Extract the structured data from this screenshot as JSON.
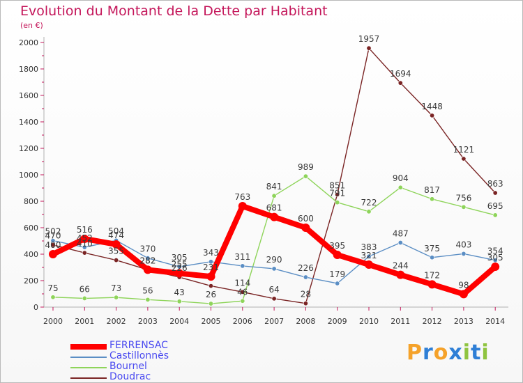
{
  "title": "Evolution du Montant de la Dette par Habitant",
  "subtitle": "(en €)",
  "logo": {
    "text": "Proxiti",
    "letters": [
      {
        "ch": "P",
        "color": "#f5a22a"
      },
      {
        "ch": "r",
        "color": "#2f7fd6"
      },
      {
        "ch": "o",
        "color": "#f5a22a"
      },
      {
        "ch": "x",
        "color": "#2f7fd6"
      },
      {
        "ch": "i",
        "color": "#8fc440"
      },
      {
        "ch": "t",
        "color": "#2f7fd6"
      },
      {
        "ch": "i",
        "color": "#8fc440"
      }
    ]
  },
  "chart_data": {
    "type": "line",
    "title": "Evolution du Montant de la Dette par Habitant",
    "subtitle": "(en €)",
    "x": [
      "2000",
      "2001",
      "2002",
      "2003",
      "2004",
      "2005",
      "2006",
      "2007",
      "2008",
      "2009",
      "2010",
      "2011",
      "2012",
      "2013",
      "2014"
    ],
    "y_ticks": [
      "0",
      "200",
      "400",
      "600",
      "800",
      "1000",
      "1200",
      "1400",
      "1600",
      "1800",
      "2000"
    ],
    "ylim": [
      0,
      2000
    ],
    "grid": false,
    "legend_position": "bottom-left",
    "series": [
      {
        "name": "FERRENSAC",
        "color": "#ff0000",
        "values": [
          400,
          516,
          474,
          282,
          255,
          231,
          763,
          681,
          600,
          395,
          321,
          244,
          172,
          98,
          305
        ],
        "labels": [
          "400",
          "516",
          "474",
          "282",
          "255",
          "231",
          "763",
          "681",
          "600",
          "395",
          "321",
          "244",
          "172",
          "98",
          "305"
        ]
      },
      {
        "name": "Castillonnès",
        "color": "#5b8ec4",
        "values": [
          502,
          452,
          504,
          370,
          305,
          343,
          311,
          290,
          226,
          179,
          383,
          487,
          375,
          403,
          354
        ],
        "labels": [
          "502",
          "452",
          "504",
          "370",
          "305",
          "343",
          "311",
          "290",
          "226",
          "179",
          "383",
          "487",
          "375",
          "403",
          "354"
        ]
      },
      {
        "name": "Bournel",
        "color": "#8ed45a",
        "values": [
          75,
          66,
          73,
          56,
          43,
          26,
          46,
          841,
          989,
          791,
          722,
          904,
          817,
          756,
          695
        ],
        "labels": [
          "75",
          "66",
          "73",
          "56",
          "43",
          "26",
          "46",
          "841",
          "989",
          "791",
          "722",
          "904",
          "817",
          "756",
          "695"
        ]
      },
      {
        "name": "Doudrac",
        "color": "#7a2424",
        "values": [
          470,
          410,
          355,
          282,
          226,
          160,
          114,
          64,
          28,
          851,
          1957,
          1694,
          1448,
          1121,
          863
        ],
        "labels": [
          "470",
          "410",
          "355",
          "282",
          "226",
          "",
          "114",
          "64",
          "28",
          "851",
          "1957",
          "1694",
          "1448",
          "1121",
          "863"
        ]
      }
    ]
  }
}
